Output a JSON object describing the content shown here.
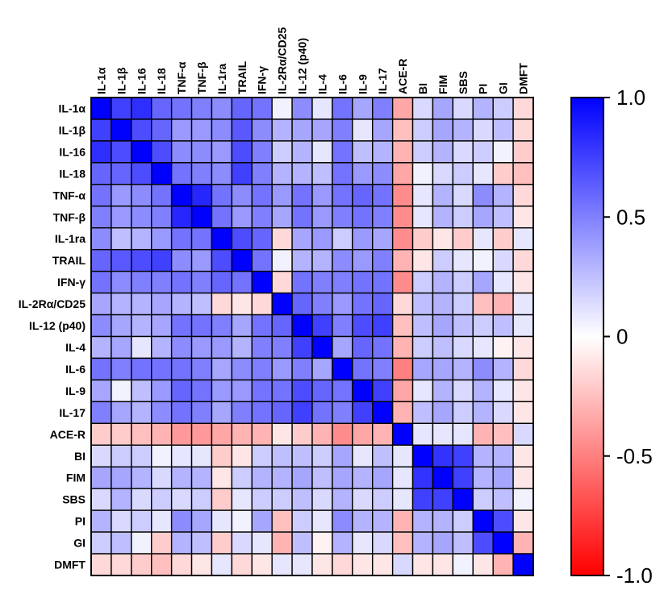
{
  "chart_data": {
    "type": "heatmap",
    "title": "",
    "xlabel": "",
    "ylabel": "",
    "labels": [
      "IL-1α",
      "IL-1β",
      "IL-16",
      "IL-18",
      "TNF-α",
      "TNF-β",
      "IL-1ra",
      "TRAIL",
      "IFN-γ",
      "IL-2Rα/CD25",
      "IL-12 (p40)",
      "IL-4",
      "IL-6",
      "IL-9",
      "IL-17",
      "ACE-R",
      "BI",
      "FIM",
      "SBS",
      "PI",
      "GI",
      "DMFT"
    ],
    "rows": [
      "IL-1α",
      "IL-1β",
      "IL-16",
      "IL-18",
      "TNF-α",
      "TNF-β",
      "IL-1ra",
      "TRAIL",
      "IFN-γ",
      "IL-2Rα/CD25",
      "IL-12 (p40)",
      "IL-4",
      "IL-6",
      "IL-9",
      "IL-17",
      "ACE-R",
      "BI",
      "FIM",
      "SBS",
      "PI",
      "GI",
      "DMFT"
    ],
    "columns": [
      "IL-1α",
      "IL-1β",
      "IL-16",
      "IL-18",
      "TNF-α",
      "TNF-β",
      "IL-1ra",
      "TRAIL",
      "IFN-γ",
      "IL-2Rα/CD25",
      "IL-12 (p40)",
      "IL-4",
      "IL-6",
      "IL-9",
      "IL-17",
      "ACE-R",
      "BI",
      "FIM",
      "SBS",
      "PI",
      "GI",
      "DMFT"
    ],
    "values": [
      [
        1.0,
        0.75,
        0.82,
        0.6,
        0.55,
        0.5,
        0.45,
        0.6,
        0.55,
        0.05,
        0.45,
        0.1,
        0.55,
        0.35,
        0.5,
        -0.35,
        0.15,
        0.35,
        0.15,
        0.3,
        0.2,
        -0.15
      ],
      [
        0.75,
        1.0,
        0.7,
        0.6,
        0.4,
        0.4,
        0.45,
        0.65,
        0.45,
        0.3,
        0.35,
        0.35,
        0.5,
        0.1,
        0.35,
        -0.25,
        0.2,
        0.35,
        0.3,
        0.15,
        0.25,
        -0.15
      ],
      [
        0.82,
        0.7,
        1.0,
        0.7,
        0.45,
        0.45,
        0.4,
        0.7,
        0.5,
        0.2,
        0.3,
        0.1,
        0.55,
        0.25,
        0.3,
        -0.3,
        0.2,
        0.3,
        0.15,
        0.2,
        0.05,
        -0.2
      ],
      [
        0.6,
        0.6,
        0.7,
        1.0,
        0.55,
        0.5,
        0.45,
        0.75,
        0.5,
        0.3,
        0.3,
        0.25,
        0.55,
        0.4,
        0.45,
        -0.35,
        0.05,
        0.15,
        0.2,
        0.1,
        -0.2,
        -0.25
      ],
      [
        0.55,
        0.4,
        0.45,
        0.55,
        1.0,
        0.85,
        0.55,
        0.45,
        0.55,
        0.4,
        0.55,
        0.4,
        0.55,
        0.6,
        0.55,
        -0.45,
        0.1,
        0.3,
        0.15,
        0.45,
        0.3,
        -0.15
      ],
      [
        0.5,
        0.4,
        0.45,
        0.5,
        0.85,
        1.0,
        0.55,
        0.4,
        0.5,
        0.35,
        0.55,
        0.4,
        0.5,
        0.55,
        0.5,
        -0.45,
        0.1,
        0.3,
        0.2,
        0.35,
        0.25,
        -0.1
      ],
      [
        0.45,
        0.25,
        0.3,
        0.4,
        0.55,
        0.55,
        1.0,
        0.7,
        0.6,
        -0.15,
        0.35,
        0.4,
        0.2,
        0.4,
        0.35,
        -0.45,
        -0.2,
        -0.1,
        -0.2,
        0.1,
        -0.2,
        0.1
      ],
      [
        0.6,
        0.65,
        0.7,
        0.75,
        0.45,
        0.4,
        0.7,
        1.0,
        0.55,
        0.05,
        0.3,
        0.3,
        0.45,
        0.4,
        0.5,
        -0.3,
        -0.1,
        0.2,
        0.1,
        0.05,
        0.15,
        -0.15
      ],
      [
        0.55,
        0.45,
        0.5,
        0.5,
        0.55,
        0.5,
        0.6,
        0.55,
        1.0,
        -0.15,
        0.55,
        0.5,
        0.5,
        0.55,
        0.55,
        -0.45,
        0.2,
        0.3,
        0.2,
        0.35,
        0.1,
        -0.1
      ],
      [
        0.35,
        0.3,
        0.3,
        0.35,
        0.3,
        0.25,
        -0.15,
        -0.1,
        -0.15,
        1.0,
        0.6,
        0.5,
        0.4,
        0.55,
        0.6,
        -0.15,
        0.25,
        0.3,
        0.2,
        -0.25,
        -0.3,
        0.1
      ],
      [
        0.45,
        0.35,
        0.3,
        0.35,
        0.55,
        0.55,
        0.5,
        0.35,
        0.55,
        0.6,
        1.0,
        0.75,
        0.5,
        0.7,
        0.75,
        -0.25,
        0.25,
        0.35,
        0.25,
        0.2,
        0.25,
        0.1
      ],
      [
        0.3,
        0.35,
        0.1,
        0.3,
        0.45,
        0.4,
        0.4,
        0.3,
        0.5,
        0.5,
        0.75,
        1.0,
        0.35,
        0.6,
        0.55,
        -0.3,
        0.2,
        0.25,
        0.15,
        0.1,
        -0.05,
        -0.1
      ],
      [
        0.55,
        0.5,
        0.55,
        0.55,
        0.55,
        0.5,
        0.35,
        0.45,
        0.5,
        0.4,
        0.5,
        0.35,
        1.0,
        0.55,
        0.5,
        -0.5,
        0.35,
        0.35,
        0.3,
        0.45,
        0.3,
        -0.15
      ],
      [
        0.35,
        0.05,
        0.25,
        0.4,
        0.6,
        0.55,
        0.4,
        0.4,
        0.55,
        0.55,
        0.7,
        0.6,
        0.55,
        1.0,
        0.75,
        -0.35,
        0.1,
        0.3,
        0.15,
        0.3,
        0.1,
        -0.1
      ],
      [
        0.5,
        0.35,
        0.3,
        0.45,
        0.55,
        0.5,
        0.35,
        0.5,
        0.55,
        0.6,
        0.75,
        0.55,
        0.5,
        0.75,
        1.0,
        -0.3,
        0.25,
        0.35,
        0.2,
        0.3,
        0.15,
        -0.1
      ],
      [
        -0.2,
        -0.2,
        -0.25,
        -0.3,
        -0.4,
        -0.4,
        -0.35,
        -0.3,
        -0.3,
        -0.1,
        -0.2,
        -0.3,
        -0.45,
        -0.35,
        -0.3,
        1.0,
        0.1,
        0.1,
        0.1,
        -0.3,
        -0.25,
        0.15
      ],
      [
        0.15,
        0.2,
        0.2,
        0.05,
        0.1,
        0.1,
        -0.2,
        -0.1,
        0.2,
        0.25,
        0.25,
        0.2,
        0.35,
        0.1,
        0.25,
        0.1,
        1.0,
        0.8,
        0.75,
        0.3,
        0.3,
        -0.1
      ],
      [
        0.35,
        0.35,
        0.3,
        0.15,
        0.3,
        0.3,
        -0.1,
        0.2,
        0.3,
        0.3,
        0.35,
        0.25,
        0.35,
        0.3,
        0.35,
        0.1,
        0.8,
        1.0,
        0.75,
        0.3,
        0.35,
        -0.1
      ],
      [
        0.15,
        0.3,
        0.15,
        0.2,
        0.15,
        0.2,
        -0.2,
        0.1,
        0.2,
        0.2,
        0.25,
        0.15,
        0.3,
        0.15,
        0.2,
        0.1,
        0.75,
        0.75,
        1.0,
        0.2,
        0.25,
        0.05
      ],
      [
        0.3,
        0.15,
        0.2,
        0.1,
        0.45,
        0.35,
        0.1,
        0.05,
        0.35,
        -0.25,
        0.2,
        0.1,
        0.45,
        0.3,
        0.3,
        -0.3,
        0.3,
        0.3,
        0.2,
        1.0,
        0.7,
        -0.1
      ],
      [
        0.2,
        0.25,
        0.05,
        -0.2,
        0.3,
        0.25,
        -0.2,
        0.15,
        0.1,
        -0.3,
        0.25,
        -0.05,
        0.3,
        0.1,
        0.15,
        -0.25,
        0.3,
        0.35,
        0.25,
        0.7,
        1.0,
        -0.3
      ],
      [
        -0.15,
        -0.15,
        -0.2,
        -0.25,
        -0.15,
        -0.1,
        0.1,
        -0.15,
        -0.1,
        0.1,
        0.1,
        -0.1,
        -0.15,
        -0.1,
        -0.1,
        0.15,
        -0.1,
        -0.1,
        0.05,
        -0.1,
        -0.3,
        1.0
      ]
    ],
    "colorbar": {
      "min": -1.0,
      "max": 1.0,
      "ticks": [
        "1.0",
        "0.5",
        "0",
        "-0.5",
        "-1.0"
      ],
      "tick_values": [
        1.0,
        0.5,
        0,
        -0.5,
        -1.0
      ]
    },
    "colors": {
      "positive": "#0000ff",
      "zero": "#ffffff",
      "negative": "#ff0000",
      "grid": "#000000"
    },
    "grid": true,
    "legend": "right (colorbar)"
  }
}
